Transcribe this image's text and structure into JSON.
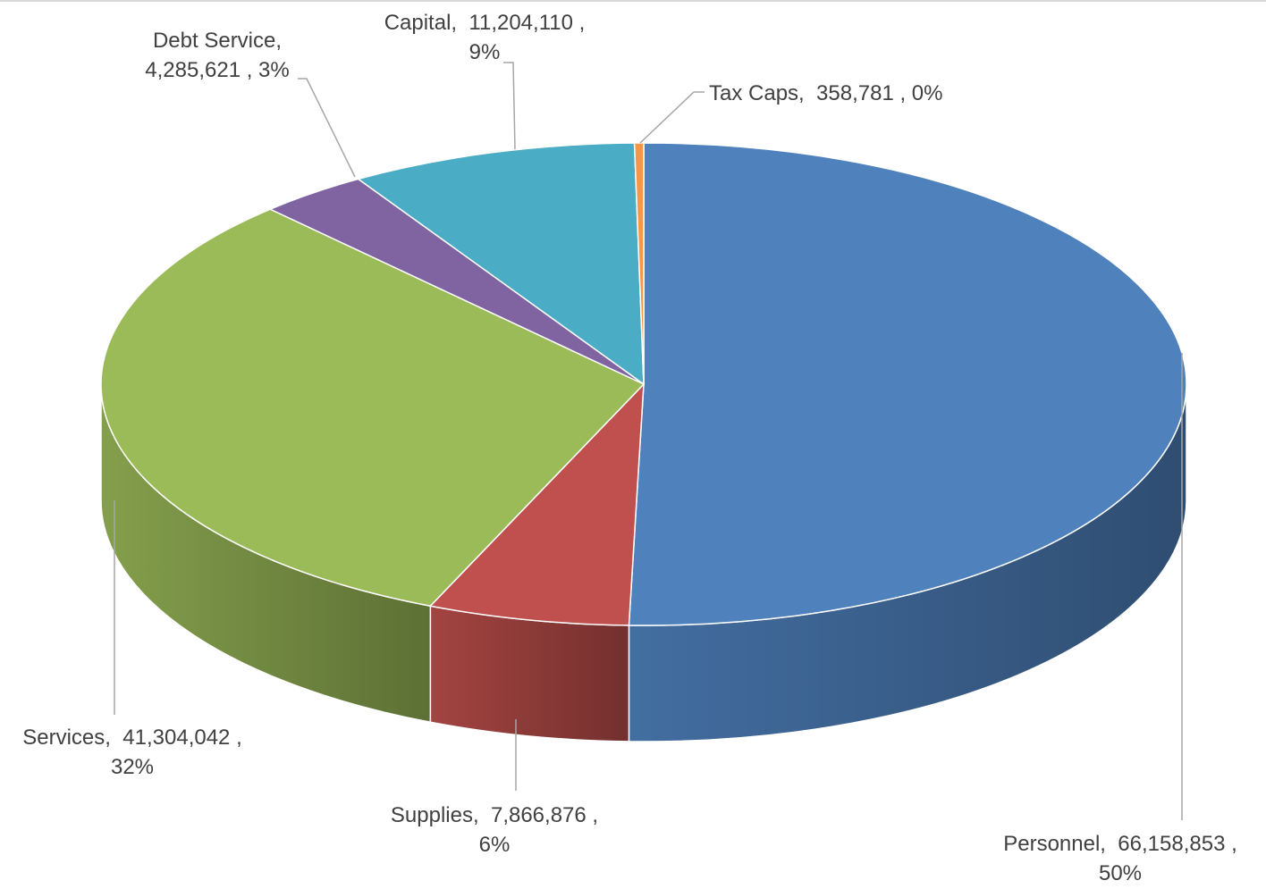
{
  "chart_data": {
    "type": "pie",
    "title": "",
    "categories": [
      "Personnel",
      "Supplies",
      "Services",
      "Debt Service",
      "Capital",
      "Tax Caps"
    ],
    "values": [
      66158853,
      7866876,
      41304042,
      4285621,
      11204110,
      358781
    ],
    "percent_labels": [
      "50%",
      "6%",
      "32%",
      "3%",
      "9%",
      "0%"
    ],
    "value_labels": [
      "66,158,853",
      "7,866,876",
      "41,304,042",
      "4,285,621",
      "11,204,110",
      "358,781"
    ],
    "colors": [
      "#4f81bd",
      "#c0504d",
      "#9bbb59",
      "#8064a2",
      "#4bacc6",
      "#f79646"
    ],
    "style": "3d-pie",
    "legend": "none",
    "data_labels": [
      {
        "lines": [
          "Personnel,  66,158,853 ,",
          "50%"
        ]
      },
      {
        "lines": [
          "Supplies,  7,866,876 ,",
          "6%"
        ]
      },
      {
        "lines": [
          "Services,  41,304,042 ,",
          "32%"
        ]
      },
      {
        "lines": [
          "Debt Service,",
          "4,285,621 , 3%"
        ]
      },
      {
        "lines": [
          "Capital,  11,204,110 ,",
          "9%"
        ]
      },
      {
        "lines": [
          "Tax Caps,  358,781 , 0%"
        ]
      }
    ]
  }
}
